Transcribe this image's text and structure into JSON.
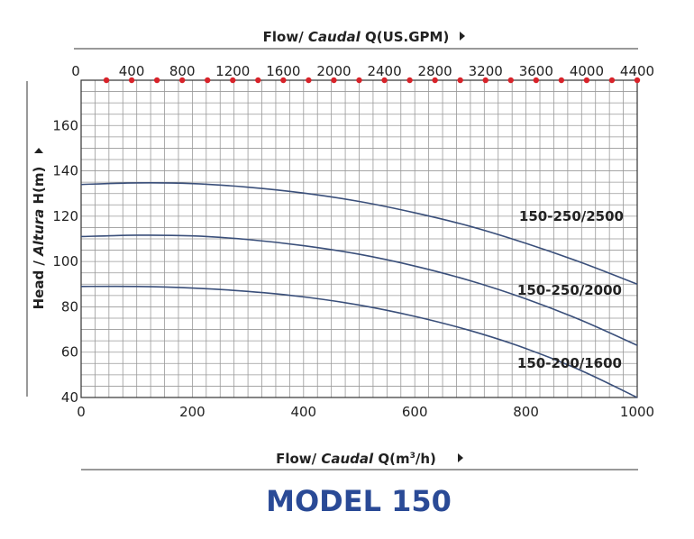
{
  "chart_data": {
    "type": "line",
    "top_axis_label": {
      "prefix": "Flow/ ",
      "italic": "Caudal",
      "suffix": " Q(US.GPM)"
    },
    "bottom_axis_label": {
      "prefix": "Flow/ ",
      "italic": "Caudal",
      "suffix": " Q(m",
      "sup": "3",
      "suffix2": "/h)"
    },
    "y_axis_label": {
      "prefix": "Head / ",
      "italic": "Altura",
      "suffix": " H(m)"
    },
    "title": "MODEL 150",
    "xlim": [
      0,
      1000
    ],
    "ylim": [
      40,
      180
    ],
    "x_ticks": [
      0,
      200,
      400,
      600,
      800,
      1000
    ],
    "y_ticks": [
      40,
      60,
      80,
      100,
      120,
      140,
      160
    ],
    "top_xlim": [
      0,
      4400
    ],
    "top_ticks": [
      0,
      400,
      800,
      1200,
      1600,
      2000,
      2400,
      2800,
      3200,
      3600,
      4000,
      4400
    ],
    "grid": true,
    "colors": {
      "curve": "#3a4f7a",
      "marker": "#d8232a",
      "title": "#2a4a96",
      "grid": "#999999"
    },
    "series": [
      {
        "name": "150-250/2500",
        "x": [
          0,
          100,
          200,
          300,
          400,
          500,
          600,
          700,
          800,
          900,
          1000
        ],
        "y": [
          134,
          134.7,
          134.4,
          132.8,
          130.2,
          126.5,
          121.5,
          115.5,
          108,
          99.5,
          90
        ]
      },
      {
        "name": "150-250/2000",
        "x": [
          0,
          100,
          200,
          300,
          400,
          500,
          600,
          700,
          800,
          900,
          1000
        ],
        "y": [
          111,
          111.6,
          111.3,
          109.7,
          107,
          103.2,
          98,
          91.5,
          83.5,
          74,
          63
        ]
      },
      {
        "name": "150-200/1600",
        "x": [
          0,
          100,
          200,
          300,
          400,
          500,
          600,
          700,
          800,
          900,
          1000
        ],
        "y": [
          89,
          89,
          88.3,
          86.8,
          84.4,
          80.8,
          75.8,
          69.5,
          61.6,
          51.8,
          40
        ]
      }
    ]
  }
}
